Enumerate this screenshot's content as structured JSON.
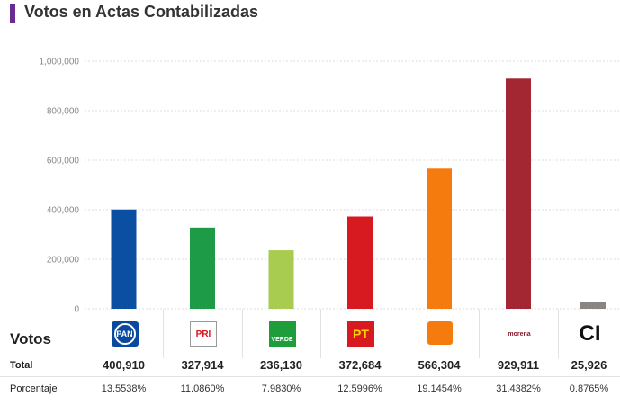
{
  "header": {
    "title": "Votos en Actas Contabilizadas",
    "accent_color": "#6b2c91"
  },
  "chart_data": {
    "type": "bar",
    "title": "Votos en Actas Contabilizadas",
    "xlabel": "",
    "ylabel": "",
    "ylim": [
      0,
      1000000
    ],
    "yticks": [
      {
        "value": 0,
        "label": "0"
      },
      {
        "value": 200000,
        "label": "200,000"
      },
      {
        "value": 400000,
        "label": "400,000"
      },
      {
        "value": 600000,
        "label": "600,000"
      },
      {
        "value": 800000,
        "label": "800,000"
      },
      {
        "value": 1000000,
        "label": "1,000,000"
      }
    ],
    "grid": true,
    "categories": [
      "PAN",
      "PRI",
      "VERDE",
      "PT",
      "MC",
      "morena",
      "CI"
    ],
    "values": [
      400910,
      327914,
      236130,
      372684,
      566304,
      929911,
      25926
    ],
    "colors": [
      "#0a4fa2",
      "#1e9b47",
      "#a8cc4f",
      "#d71920",
      "#f57b0e",
      "#a32732",
      "#8a8580"
    ]
  },
  "table": {
    "votos_label": "Votos",
    "total_label": "Total",
    "pct_label": "Porcentaje",
    "parties": [
      {
        "logo": "pan-logo-icon",
        "logo_text": "PAN",
        "total": "400,910",
        "pct": "13.5538%"
      },
      {
        "logo": "pri-logo-icon",
        "logo_text": "PRI",
        "total": "327,914",
        "pct": "11.0860%"
      },
      {
        "logo": "verde-logo-icon",
        "logo_text": "VERDE",
        "total": "236,130",
        "pct": "7.9830%"
      },
      {
        "logo": "pt-logo-icon",
        "logo_text": "PT",
        "total": "372,684",
        "pct": "12.5996%"
      },
      {
        "logo": "mc-logo-icon",
        "logo_text": "",
        "total": "566,304",
        "pct": "19.1454%"
      },
      {
        "logo": "morena-logo-icon",
        "logo_text": "morena",
        "total": "929,911",
        "pct": "31.4382%"
      },
      {
        "logo": "ci-logo-icon",
        "logo_text": "CI",
        "total": "25,926",
        "pct": "0.8765%"
      }
    ]
  }
}
